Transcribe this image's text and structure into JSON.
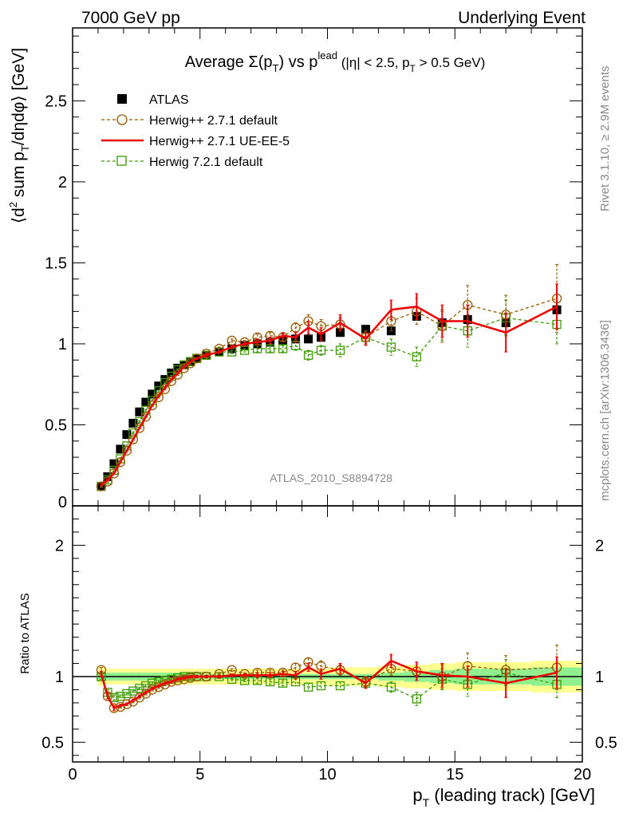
{
  "header": {
    "left": "7000 GeV pp",
    "right": "Underlying Event"
  },
  "side": {
    "rivet": "Rivet 3.1.10, ≥ 2.9M events",
    "mcplots": "mcplots.cern.ch [arXiv:1306.3436]"
  },
  "colors": {
    "atlas": "#000000",
    "herwigpp_default": "#9a5a00",
    "herwigpp_ueee5": "#ee0000",
    "herwig7_default": "#3d9a00",
    "band_stat": "#90f090",
    "band_syst": "#ffff90",
    "watermark": "#888888"
  },
  "chart_data": [
    {
      "type": "scatter",
      "panel": "main",
      "title": {
        "prefix": "Average Σ(p",
        "sub_T": "T",
        "middle": ") vs p",
        "sup_lead": "lead",
        "suffix": " (|η| < 2.5, p",
        "suffix2": " > 0.5 GeV)"
      },
      "ylabel": "⟨d² sum p_T/dηdφ⟩ [GeV]",
      "ylabel_parts": {
        "a": "⟨d",
        "sup": "2",
        "b": " sum p",
        "sub": "T",
        "c": "/dηdφ⟩ [GeV]"
      },
      "xlim": [
        0,
        20
      ],
      "ylim": [
        0,
        2.95
      ],
      "yticks": [
        0,
        0.5,
        1,
        1.5,
        2,
        2.5
      ],
      "ytick_labels": [
        "0",
        "0.5",
        "1",
        "1.5",
        "2",
        "2.5"
      ],
      "analysis_label": "ATLAS_2010_S8894728",
      "legend_position": "top-left",
      "series": [
        {
          "name": "ATLAS",
          "marker": "filled-square",
          "x": [
            1.125,
            1.375,
            1.625,
            1.875,
            2.125,
            2.375,
            2.625,
            2.875,
            3.125,
            3.375,
            3.625,
            3.875,
            4.125,
            4.375,
            4.625,
            4.875,
            5.25,
            5.75,
            6.25,
            6.75,
            7.25,
            7.75,
            8.25,
            8.75,
            9.25,
            9.75,
            10.5,
            11.5,
            12.5,
            13.5,
            14.5,
            15.5,
            17.0,
            19.0
          ],
          "y": [
            0.12,
            0.18,
            0.26,
            0.35,
            0.44,
            0.51,
            0.58,
            0.64,
            0.69,
            0.74,
            0.78,
            0.82,
            0.85,
            0.87,
            0.89,
            0.91,
            0.93,
            0.95,
            0.97,
            0.99,
            1.0,
            1.01,
            1.02,
            1.03,
            1.03,
            1.04,
            1.07,
            1.09,
            1.08,
            1.17,
            1.13,
            1.15,
            1.13,
            1.21
          ]
        },
        {
          "name": "Herwig++ 2.7.1 default",
          "marker": "open-circle",
          "line": "dashed",
          "x": [
            1.125,
            1.375,
            1.625,
            1.875,
            2.125,
            2.375,
            2.625,
            2.875,
            3.125,
            3.375,
            3.625,
            3.875,
            4.125,
            4.375,
            4.625,
            4.875,
            5.25,
            5.75,
            6.25,
            6.75,
            7.25,
            7.75,
            8.25,
            8.75,
            9.25,
            9.75,
            10.5,
            11.5,
            12.5,
            13.5,
            14.5,
            15.5,
            17.0,
            19.0
          ],
          "y": [
            0.12,
            0.15,
            0.2,
            0.27,
            0.34,
            0.41,
            0.48,
            0.55,
            0.62,
            0.67,
            0.72,
            0.77,
            0.81,
            0.85,
            0.88,
            0.91,
            0.94,
            0.97,
            1.02,
            1.01,
            1.04,
            1.05,
            1.04,
            1.1,
            1.14,
            1.11,
            1.12,
            1.04,
            1.14,
            1.2,
            1.11,
            1.24,
            1.18,
            1.28
          ],
          "yerr": [
            0.005,
            0.005,
            0.005,
            0.005,
            0.005,
            0.005,
            0.005,
            0.005,
            0.005,
            0.005,
            0.005,
            0.005,
            0.005,
            0.005,
            0.005,
            0.005,
            0.01,
            0.01,
            0.01,
            0.01,
            0.02,
            0.02,
            0.02,
            0.03,
            0.04,
            0.04,
            0.04,
            0.04,
            0.06,
            0.08,
            0.1,
            0.12,
            0.12,
            0.21
          ]
        },
        {
          "name": "Herwig++ 2.7.1 UE-EE-5",
          "marker": "none",
          "line": "solid",
          "x": [
            1.125,
            1.375,
            1.625,
            1.875,
            2.125,
            2.375,
            2.625,
            2.875,
            3.125,
            3.375,
            3.625,
            3.875,
            4.125,
            4.375,
            4.625,
            4.875,
            5.25,
            5.75,
            6.25,
            6.75,
            7.25,
            7.75,
            8.25,
            8.75,
            9.25,
            9.75,
            10.5,
            11.5,
            12.5,
            13.5,
            14.5,
            15.5,
            17.0,
            19.0
          ],
          "y": [
            0.13,
            0.16,
            0.2,
            0.27,
            0.34,
            0.41,
            0.48,
            0.55,
            0.62,
            0.68,
            0.73,
            0.78,
            0.82,
            0.86,
            0.89,
            0.91,
            0.93,
            0.95,
            0.98,
            1.0,
            1.01,
            1.02,
            1.05,
            1.04,
            1.1,
            1.06,
            1.13,
            1.03,
            1.21,
            1.23,
            1.14,
            1.14,
            1.07,
            1.23
          ],
          "yerr": [
            0.005,
            0.005,
            0.005,
            0.005,
            0.005,
            0.005,
            0.005,
            0.005,
            0.005,
            0.005,
            0.005,
            0.005,
            0.005,
            0.005,
            0.005,
            0.005,
            0.01,
            0.01,
            0.01,
            0.01,
            0.02,
            0.02,
            0.02,
            0.03,
            0.04,
            0.04,
            0.05,
            0.04,
            0.06,
            0.08,
            0.1,
            0.1,
            0.12,
            0.14
          ]
        },
        {
          "name": "Herwig 7.2.1 default",
          "marker": "open-square",
          "line": "dashed",
          "x": [
            1.125,
            1.375,
            1.625,
            1.875,
            2.125,
            2.375,
            2.625,
            2.875,
            3.125,
            3.375,
            3.625,
            3.875,
            4.125,
            4.375,
            4.625,
            4.875,
            5.25,
            5.75,
            6.25,
            6.75,
            7.25,
            7.75,
            8.25,
            8.75,
            9.25,
            9.75,
            10.5,
            11.5,
            12.5,
            13.5,
            14.5,
            15.5,
            17.0,
            19.0
          ],
          "y": [
            0.12,
            0.16,
            0.22,
            0.29,
            0.37,
            0.45,
            0.52,
            0.59,
            0.65,
            0.71,
            0.76,
            0.8,
            0.84,
            0.87,
            0.89,
            0.91,
            0.93,
            0.95,
            0.95,
            0.96,
            0.97,
            0.97,
            0.97,
            0.99,
            0.93,
            0.96,
            0.96,
            1.04,
            0.98,
            0.92,
            1.11,
            1.08,
            1.16,
            1.12
          ],
          "yerr": [
            0.005,
            0.005,
            0.005,
            0.005,
            0.005,
            0.005,
            0.005,
            0.005,
            0.005,
            0.005,
            0.005,
            0.005,
            0.005,
            0.005,
            0.005,
            0.005,
            0.01,
            0.01,
            0.01,
            0.01,
            0.02,
            0.02,
            0.02,
            0.03,
            0.03,
            0.03,
            0.04,
            0.04,
            0.05,
            0.06,
            0.09,
            0.1,
            0.11,
            0.12
          ]
        }
      ]
    },
    {
      "type": "line",
      "panel": "ratio",
      "ylabel": "Ratio to ATLAS",
      "xlabel": "p_T (leading track) [GeV]",
      "xlabel_parts": {
        "a": "p",
        "sub": "T",
        "b": " (leading track) [GeV]"
      },
      "xlim": [
        0,
        20
      ],
      "ylim": [
        0.35,
        2.3
      ],
      "xticks": [
        0,
        5,
        10,
        15,
        20
      ],
      "xtick_labels": [
        "0",
        "5",
        "10",
        "15",
        "20"
      ],
      "yticks": [
        0.5,
        1,
        2
      ],
      "ytick_labels": [
        "0.5",
        "1",
        "2"
      ],
      "bands": {
        "x_edges": [
          1.0,
          1.25,
          1.5,
          1.75,
          2.0,
          2.25,
          2.5,
          2.75,
          3.0,
          3.25,
          3.5,
          3.75,
          4.0,
          4.25,
          4.5,
          4.75,
          5.0,
          5.5,
          6.0,
          6.5,
          7.0,
          7.5,
          8.0,
          8.5,
          9.0,
          9.5,
          10.0,
          11.0,
          12.0,
          13.0,
          14.0,
          15.0,
          16.0,
          18.0,
          20.0
        ],
        "stat": [
          0.03,
          0.03,
          0.03,
          0.03,
          0.03,
          0.03,
          0.03,
          0.03,
          0.03,
          0.03,
          0.03,
          0.03,
          0.03,
          0.03,
          0.03,
          0.03,
          0.02,
          0.02,
          0.02,
          0.02,
          0.02,
          0.02,
          0.02,
          0.02,
          0.02,
          0.02,
          0.02,
          0.02,
          0.03,
          0.04,
          0.05,
          0.06,
          0.06,
          0.07
        ],
        "total": [
          0.07,
          0.06,
          0.06,
          0.06,
          0.06,
          0.06,
          0.06,
          0.06,
          0.06,
          0.06,
          0.06,
          0.06,
          0.06,
          0.06,
          0.06,
          0.06,
          0.06,
          0.06,
          0.06,
          0.06,
          0.06,
          0.06,
          0.06,
          0.06,
          0.06,
          0.06,
          0.07,
          0.07,
          0.08,
          0.09,
          0.1,
          0.11,
          0.11,
          0.12
        ]
      },
      "series": [
        {
          "name": "Herwig++ 2.7.1 default",
          "x": [
            1.125,
            1.375,
            1.625,
            1.875,
            2.125,
            2.375,
            2.625,
            2.875,
            3.125,
            3.375,
            3.625,
            3.875,
            4.125,
            4.375,
            4.625,
            4.875,
            5.25,
            5.75,
            6.25,
            6.75,
            7.25,
            7.75,
            8.25,
            8.75,
            9.25,
            9.75,
            10.5,
            11.5,
            12.5,
            13.5,
            14.5,
            15.5,
            17.0,
            19.0
          ],
          "y": [
            1.05,
            0.85,
            0.76,
            0.77,
            0.79,
            0.81,
            0.84,
            0.87,
            0.9,
            0.92,
            0.94,
            0.96,
            0.97,
            0.98,
            0.99,
            1.0,
            1.0,
            1.02,
            1.05,
            1.02,
            1.03,
            1.03,
            1.03,
            1.07,
            1.11,
            1.08,
            1.05,
            0.96,
            1.06,
            1.04,
            1.0,
            1.08,
            1.05,
            1.07
          ],
          "yerr": [
            0.02,
            0.02,
            0.02,
            0.01,
            0.01,
            0.01,
            0.01,
            0.01,
            0.01,
            0.01,
            0.01,
            0.01,
            0.01,
            0.01,
            0.01,
            0.01,
            0.01,
            0.01,
            0.01,
            0.01,
            0.02,
            0.02,
            0.02,
            0.03,
            0.03,
            0.04,
            0.04,
            0.04,
            0.05,
            0.07,
            0.09,
            0.1,
            0.11,
            0.17
          ]
        },
        {
          "name": "Herwig++ 2.7.1 UE-EE-5",
          "x": [
            1.125,
            1.375,
            1.625,
            1.875,
            2.125,
            2.375,
            2.625,
            2.875,
            3.125,
            3.375,
            3.625,
            3.875,
            4.125,
            4.375,
            4.625,
            4.875,
            5.25,
            5.75,
            6.25,
            6.75,
            7.25,
            7.75,
            8.25,
            8.75,
            9.25,
            9.75,
            10.5,
            11.5,
            12.5,
            13.5,
            14.5,
            15.5,
            17.0,
            19.0
          ],
          "y": [
            1.02,
            0.85,
            0.76,
            0.78,
            0.79,
            0.82,
            0.85,
            0.88,
            0.91,
            0.93,
            0.95,
            0.96,
            0.98,
            0.99,
            1.0,
            1.0,
            1.0,
            1.0,
            1.01,
            1.01,
            1.01,
            1.01,
            1.02,
            1.01,
            1.07,
            1.02,
            1.06,
            0.95,
            1.12,
            1.04,
            1.01,
            1.0,
            0.95,
            1.03
          ],
          "yerr": [
            0.02,
            0.02,
            0.02,
            0.01,
            0.01,
            0.01,
            0.01,
            0.01,
            0.01,
            0.01,
            0.01,
            0.01,
            0.01,
            0.01,
            0.01,
            0.01,
            0.01,
            0.01,
            0.01,
            0.01,
            0.02,
            0.02,
            0.02,
            0.03,
            0.03,
            0.04,
            0.04,
            0.04,
            0.05,
            0.07,
            0.09,
            0.08,
            0.11,
            0.12
          ]
        },
        {
          "name": "Herwig 7.2.1 default",
          "x": [
            1.125,
            1.375,
            1.625,
            1.875,
            2.125,
            2.375,
            2.625,
            2.875,
            3.125,
            3.375,
            3.625,
            3.875,
            4.125,
            4.375,
            4.625,
            4.875,
            5.25,
            5.75,
            6.25,
            6.75,
            7.25,
            7.75,
            8.25,
            8.75,
            9.25,
            9.75,
            10.5,
            11.5,
            12.5,
            13.5,
            14.5,
            15.5,
            17.0,
            19.0
          ],
          "y": [
            1.0,
            0.88,
            0.84,
            0.85,
            0.87,
            0.89,
            0.91,
            0.93,
            0.95,
            0.96,
            0.97,
            0.98,
            0.99,
            1.0,
            1.0,
            1.0,
            1.0,
            1.0,
            0.98,
            0.97,
            0.97,
            0.96,
            0.95,
            0.96,
            0.92,
            0.93,
            0.93,
            0.95,
            0.92,
            0.83,
            0.98,
            0.94,
            1.03,
            0.94
          ],
          "yerr": [
            0.02,
            0.02,
            0.02,
            0.01,
            0.01,
            0.01,
            0.01,
            0.01,
            0.01,
            0.01,
            0.01,
            0.01,
            0.01,
            0.01,
            0.01,
            0.01,
            0.01,
            0.01,
            0.01,
            0.01,
            0.02,
            0.02,
            0.02,
            0.03,
            0.03,
            0.03,
            0.03,
            0.04,
            0.04,
            0.05,
            0.08,
            0.09,
            0.1,
            0.1
          ]
        }
      ]
    }
  ]
}
